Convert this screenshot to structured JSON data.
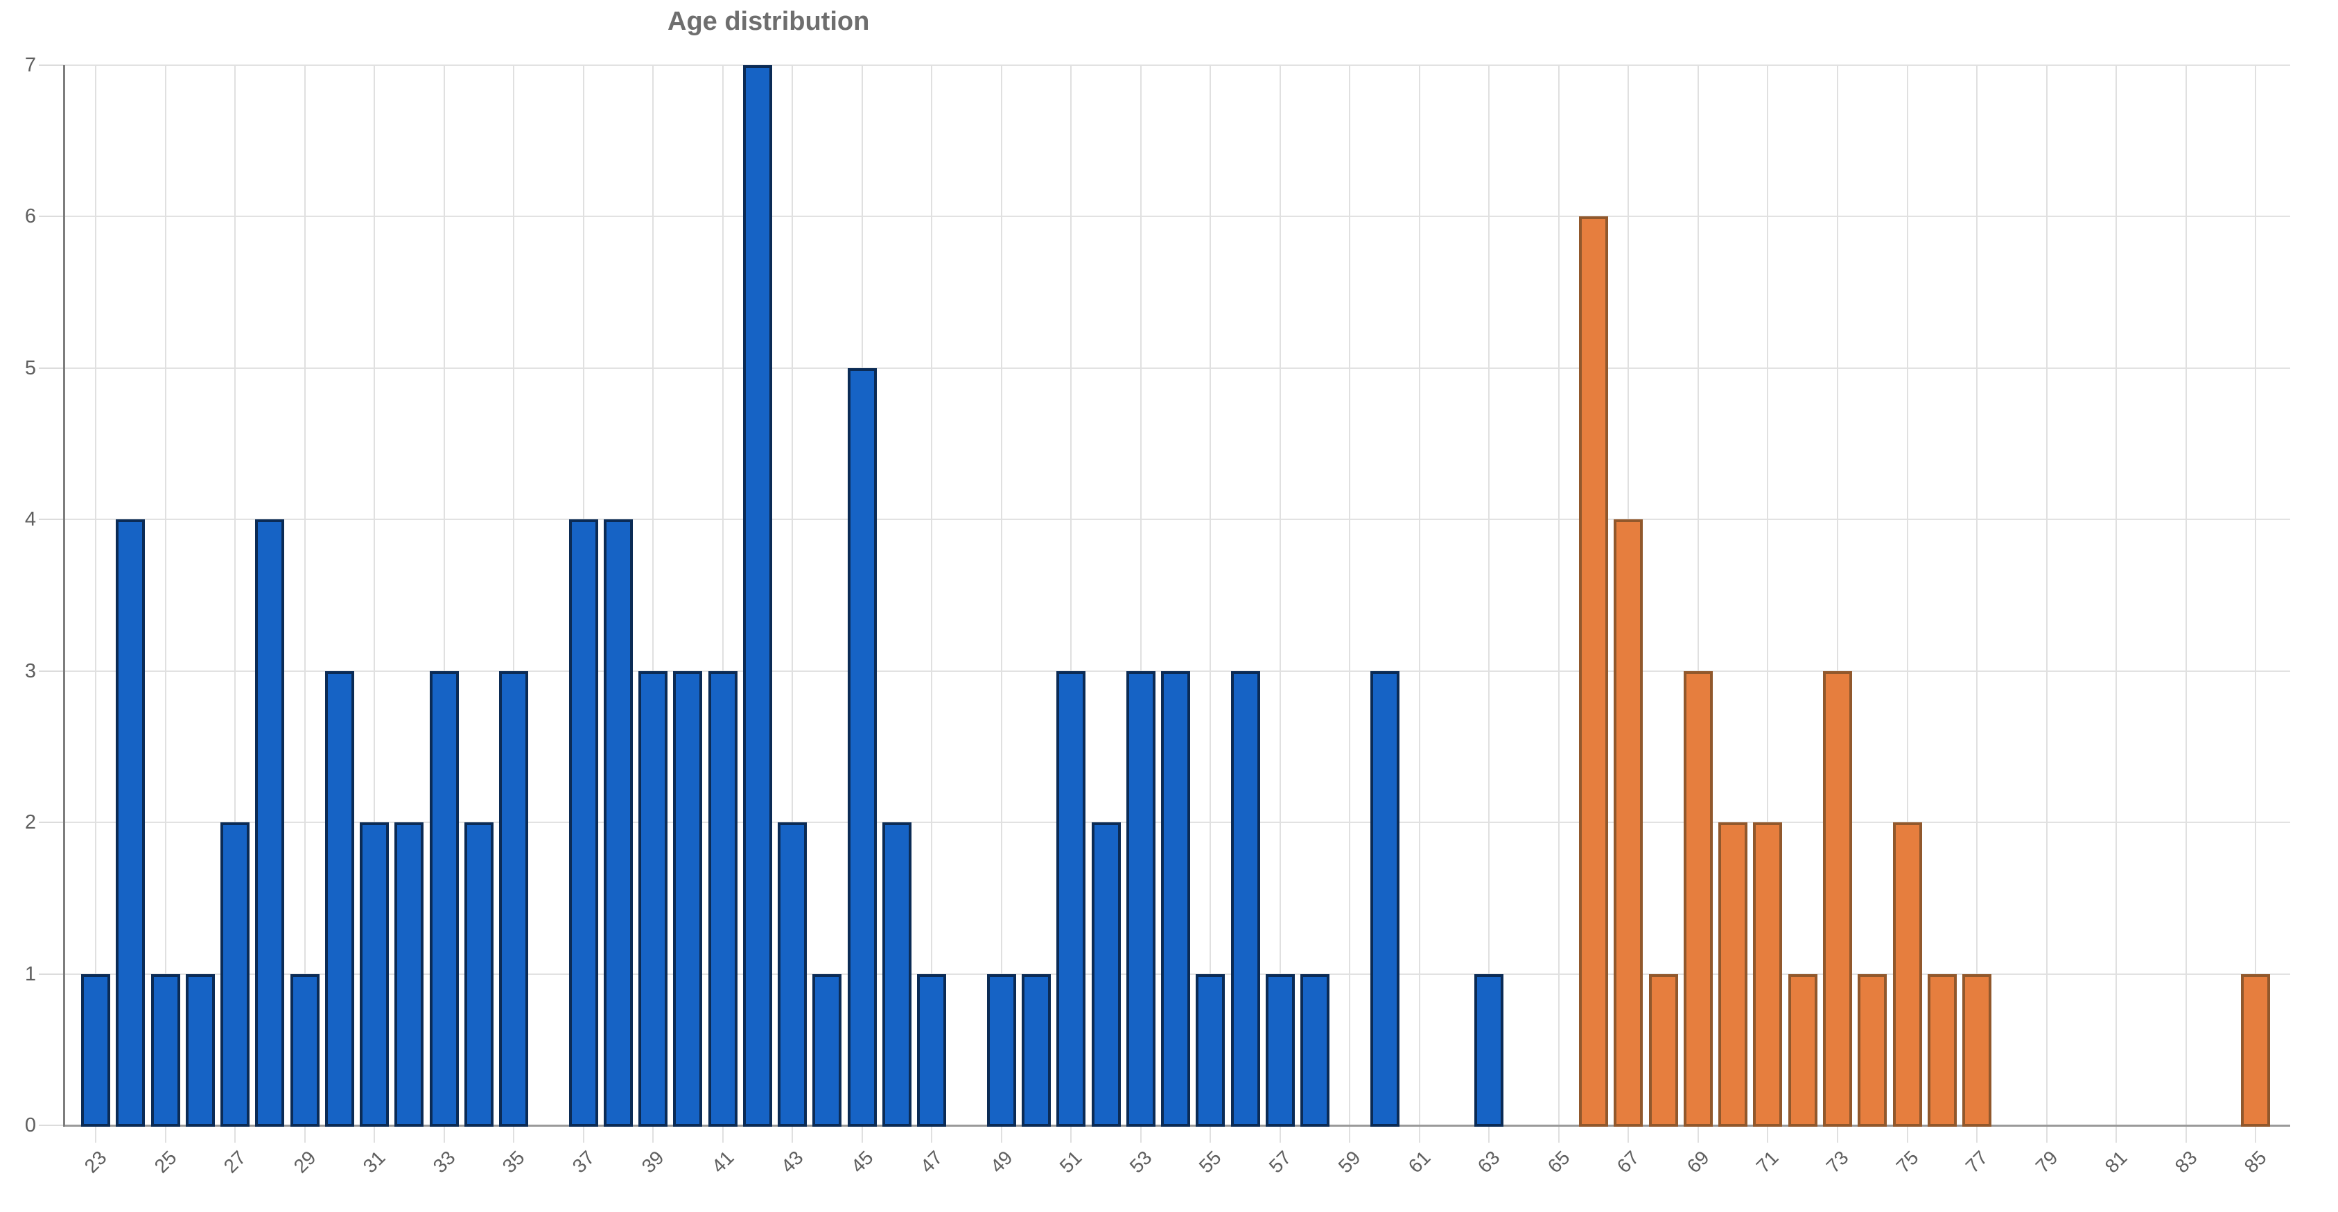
{
  "chart_data": {
    "type": "bar",
    "title": "Age distribution",
    "xlabel": "",
    "ylabel": "",
    "ylim": [
      0,
      7
    ],
    "grid": true,
    "legend": "none",
    "background_color": "#ffffff",
    "yticks": [
      0,
      1,
      2,
      3,
      4,
      5,
      6,
      7
    ],
    "xticks": [
      23,
      25,
      27,
      29,
      31,
      33,
      35,
      37,
      39,
      41,
      43,
      45,
      47,
      49,
      51,
      53,
      55,
      57,
      59,
      61,
      63,
      65,
      67,
      69,
      71,
      73,
      75,
      77,
      79,
      81,
      83,
      85
    ],
    "categories": [
      23,
      24,
      25,
      26,
      27,
      28,
      29,
      30,
      31,
      32,
      33,
      34,
      35,
      36,
      37,
      38,
      39,
      40,
      41,
      42,
      43,
      44,
      45,
      46,
      47,
      48,
      49,
      50,
      51,
      52,
      53,
      54,
      55,
      56,
      57,
      58,
      59,
      60,
      61,
      62,
      63,
      64,
      65,
      66,
      67,
      68,
      69,
      70,
      71,
      72,
      73,
      74,
      75,
      76,
      77,
      78,
      79,
      80,
      81,
      82,
      83,
      84,
      85
    ],
    "series": [
      {
        "name": "blue",
        "fill": "#1663C5",
        "stroke": "#0b2b55",
        "values": [
          1,
          4,
          1,
          1,
          2,
          4,
          1,
          3,
          2,
          2,
          3,
          2,
          3,
          0,
          4,
          4,
          3,
          3,
          3,
          7,
          2,
          1,
          5,
          2,
          1,
          0,
          1,
          1,
          3,
          2,
          3,
          3,
          1,
          3,
          1,
          1,
          0,
          3,
          0,
          0,
          1,
          0,
          0,
          0,
          0,
          0,
          0,
          0,
          0,
          0,
          0,
          0,
          0,
          0,
          0,
          0,
          0,
          0,
          0,
          0,
          0,
          0,
          0
        ]
      },
      {
        "name": "orange",
        "fill": "#E67E3E",
        "stroke": "#91582c",
        "values": [
          0,
          0,
          0,
          0,
          0,
          0,
          0,
          0,
          0,
          0,
          0,
          0,
          0,
          0,
          0,
          0,
          0,
          0,
          0,
          0,
          0,
          0,
          0,
          0,
          0,
          0,
          0,
          0,
          0,
          0,
          0,
          0,
          0,
          0,
          0,
          0,
          0,
          0,
          0,
          0,
          0,
          0,
          0,
          6,
          4,
          1,
          3,
          2,
          2,
          1,
          3,
          1,
          2,
          1,
          1,
          0,
          0,
          0,
          0,
          0,
          0,
          0,
          1
        ]
      }
    ]
  }
}
